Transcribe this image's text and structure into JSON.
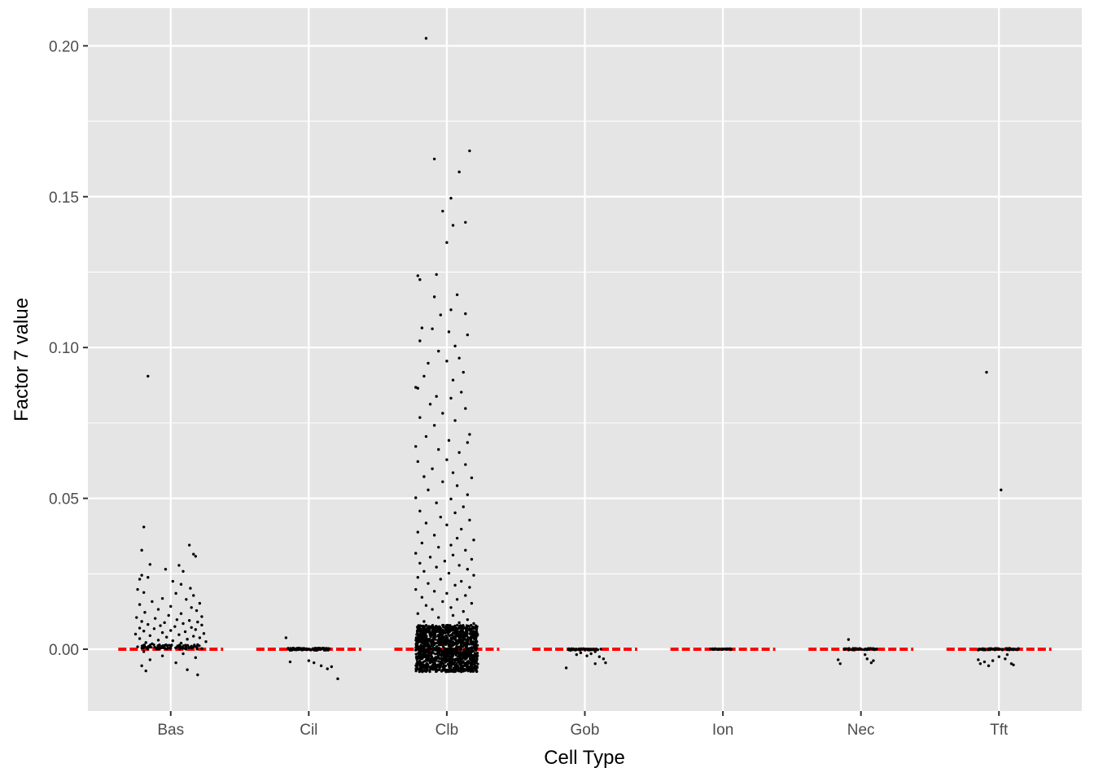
{
  "chart_data": {
    "type": "scatter",
    "title": "",
    "xlabel": "Cell Type",
    "ylabel": "Factor 7 value",
    "categories": [
      "Bas",
      "Cil",
      "Clb",
      "Gob",
      "Ion",
      "Nec",
      "Tft"
    ],
    "ylim": [
      -0.0205,
      0.2125
    ],
    "yticks": [
      0.0,
      0.05,
      0.1,
      0.15,
      0.2
    ],
    "ytick_labels": [
      "0.00",
      "0.05",
      "0.10",
      "0.15",
      "0.20"
    ],
    "grid": true,
    "legend": "none",
    "reference_line": {
      "value": 0.0,
      "color": "#ff0000",
      "style": "dashed",
      "per_category": true
    },
    "colors": {
      "panel": "#e5e5e5",
      "grid": "#ffffff",
      "point": "#000000",
      "reference": "#ff0000"
    },
    "series": [
      {
        "category": "Bas",
        "points": [
          [
            -0.22,
            0.0905
          ],
          [
            -0.26,
            0.0405
          ],
          [
            -0.28,
            0.0328
          ],
          [
            0.18,
            0.0345
          ],
          [
            0.22,
            0.0315
          ],
          [
            0.24,
            0.0308
          ],
          [
            -0.2,
            0.0281
          ],
          [
            0.08,
            0.0278
          ],
          [
            -0.05,
            0.0265
          ],
          [
            0.12,
            0.0258
          ],
          [
            -0.28,
            0.0245
          ],
          [
            -0.22,
            0.0238
          ],
          [
            -0.3,
            0.0232
          ],
          [
            0.02,
            0.0225
          ],
          [
            0.1,
            0.0215
          ],
          [
            0.19,
            0.0202
          ],
          [
            -0.32,
            0.0198
          ],
          [
            -0.26,
            0.0188
          ],
          [
            0.05,
            0.0185
          ],
          [
            0.22,
            0.0178
          ],
          [
            -0.08,
            0.0168
          ],
          [
            0.15,
            0.0165
          ],
          [
            -0.18,
            0.0158
          ],
          [
            0.28,
            0.0152
          ],
          [
            -0.3,
            0.0148
          ],
          [
            0.0,
            0.0142
          ],
          [
            0.2,
            0.0138
          ],
          [
            -0.12,
            0.0132
          ],
          [
            0.25,
            0.0128
          ],
          [
            -0.25,
            0.0122
          ],
          [
            0.1,
            0.0118
          ],
          [
            -0.02,
            0.0112
          ],
          [
            0.3,
            0.0108
          ],
          [
            -0.33,
            0.0105
          ],
          [
            -0.15,
            0.0102
          ],
          [
            0.06,
            0.0098
          ],
          [
            0.18,
            0.0095
          ],
          [
            -0.28,
            0.0092
          ],
          [
            0.26,
            0.009
          ],
          [
            -0.06,
            0.0088
          ],
          [
            0.12,
            0.0085
          ],
          [
            -0.22,
            0.0082
          ],
          [
            0.3,
            0.008
          ],
          [
            -0.1,
            0.0078
          ],
          [
            0.04,
            0.0075
          ],
          [
            0.2,
            0.0072
          ],
          [
            -0.3,
            0.007
          ],
          [
            -0.16,
            0.0068
          ],
          [
            0.24,
            0.0065
          ],
          [
            0.0,
            0.0062
          ],
          [
            -0.26,
            0.006
          ],
          [
            0.14,
            0.0058
          ],
          [
            -0.08,
            0.0055
          ],
          [
            0.32,
            0.0052
          ],
          [
            -0.34,
            0.005
          ],
          [
            0.08,
            0.0048
          ],
          [
            -0.2,
            0.0045
          ],
          [
            0.22,
            0.0043
          ],
          [
            -0.04,
            0.004
          ],
          [
            0.28,
            0.0038
          ],
          [
            -0.3,
            0.0035
          ],
          [
            0.16,
            0.0033
          ],
          [
            -0.12,
            0.003
          ],
          [
            0.02,
            0.0028
          ],
          [
            0.34,
            0.0025
          ],
          [
            -0.24,
            0.0022
          ],
          [
            0.1,
            0.002
          ],
          [
            -0.18,
            0.0018
          ],
          [
            0.26,
            0.0015
          ],
          [
            -0.06,
            0.0012
          ],
          [
            0.2,
            0.001
          ],
          [
            -0.32,
            0.0008
          ],
          [
            0.06,
            0.0006
          ],
          [
            -0.14,
            0.0004
          ],
          [
            0.3,
            0.0002
          ],
          [
            -0.26,
            -0.0008
          ],
          [
            0.12,
            -0.0015
          ],
          [
            -0.08,
            -0.0022
          ],
          [
            0.24,
            -0.0028
          ],
          [
            -0.2,
            -0.0035
          ],
          [
            0.05,
            -0.0045
          ],
          [
            -0.28,
            -0.0055
          ],
          [
            -0.24,
            -0.0072
          ],
          [
            0.16,
            -0.0068
          ],
          [
            0.26,
            -0.0085
          ]
        ]
      },
      {
        "category": "Cil",
        "points": [
          [
            -0.22,
            0.0038
          ],
          [
            -0.18,
            -0.0042
          ],
          [
            0.0,
            -0.0038
          ],
          [
            0.05,
            -0.0045
          ],
          [
            0.12,
            -0.0055
          ],
          [
            0.18,
            -0.0065
          ],
          [
            0.28,
            -0.0098
          ],
          [
            0.22,
            -0.0058
          ]
        ]
      },
      {
        "category": "Clb",
        "points": [
          [
            -0.2,
            0.2025
          ],
          [
            -0.12,
            0.1625
          ],
          [
            0.22,
            0.1652
          ],
          [
            0.12,
            0.1582
          ],
          [
            0.04,
            0.1495
          ],
          [
            -0.04,
            0.1452
          ],
          [
            0.18,
            0.1415
          ],
          [
            0.06,
            0.1405
          ],
          [
            0.0,
            0.1348
          ],
          [
            -0.28,
            0.1238
          ],
          [
            -0.26,
            0.1225
          ],
          [
            -0.1,
            0.1242
          ],
          [
            0.1,
            0.1175
          ],
          [
            -0.12,
            0.1168
          ],
          [
            0.04,
            0.1125
          ],
          [
            -0.06,
            0.1108
          ],
          [
            0.18,
            0.1112
          ],
          [
            -0.24,
            0.1065
          ],
          [
            -0.14,
            0.1062
          ],
          [
            0.02,
            0.1052
          ],
          [
            0.2,
            0.1042
          ],
          [
            -0.26,
            0.1022
          ],
          [
            0.08,
            0.1005
          ],
          [
            -0.08,
            0.0988
          ],
          [
            0.12,
            0.0965
          ],
          [
            -0.18,
            0.0948
          ],
          [
            0.0,
            0.0955
          ],
          [
            0.16,
            0.0918
          ],
          [
            -0.22,
            0.0905
          ],
          [
            0.06,
            0.0892
          ],
          [
            -0.3,
            0.0868
          ],
          [
            -0.28,
            0.0865
          ],
          [
            0.14,
            0.0852
          ],
          [
            -0.1,
            0.0838
          ],
          [
            0.04,
            0.0832
          ],
          [
            -0.16,
            0.0812
          ],
          [
            0.18,
            0.0798
          ],
          [
            -0.04,
            0.0782
          ],
          [
            -0.26,
            0.0768
          ],
          [
            0.08,
            0.0758
          ],
          [
            -0.12,
            0.0742
          ],
          [
            0.22,
            0.0712
          ],
          [
            -0.2,
            0.0705
          ],
          [
            0.02,
            0.0692
          ],
          [
            0.2,
            0.0685
          ],
          [
            -0.3,
            0.0672
          ],
          [
            -0.08,
            0.0662
          ],
          [
            0.12,
            0.0652
          ],
          [
            -0.28,
            0.0622
          ],
          [
            0.0,
            0.0628
          ],
          [
            0.18,
            0.0612
          ],
          [
            -0.14,
            0.0598
          ],
          [
            0.06,
            0.0585
          ],
          [
            -0.22,
            0.0572
          ],
          [
            0.24,
            0.0568
          ],
          [
            -0.04,
            0.0555
          ],
          [
            0.1,
            0.0542
          ],
          [
            -0.18,
            0.0528
          ],
          [
            0.2,
            0.0512
          ],
          [
            -0.3,
            0.0502
          ],
          [
            0.04,
            0.0498
          ],
          [
            -0.1,
            0.0485
          ],
          [
            0.16,
            0.0472
          ],
          [
            -0.26,
            0.0458
          ],
          [
            0.08,
            0.0452
          ],
          [
            -0.06,
            0.0438
          ],
          [
            0.22,
            0.0428
          ],
          [
            -0.2,
            0.0418
          ],
          [
            0.0,
            0.0412
          ],
          [
            0.14,
            0.0398
          ],
          [
            -0.28,
            0.0388
          ],
          [
            -0.12,
            0.0378
          ],
          [
            0.1,
            0.0368
          ],
          [
            0.26,
            0.0362
          ],
          [
            -0.24,
            0.0352
          ],
          [
            0.04,
            0.0345
          ],
          [
            -0.08,
            0.0338
          ],
          [
            0.18,
            0.0328
          ],
          [
            -0.3,
            0.0318
          ],
          [
            0.06,
            0.0312
          ],
          [
            -0.16,
            0.0305
          ],
          [
            0.24,
            0.0298
          ],
          [
            -0.02,
            0.0292
          ],
          [
            -0.26,
            0.0285
          ],
          [
            0.12,
            0.0278
          ],
          [
            -0.1,
            0.0272
          ],
          [
            0.2,
            0.0265
          ],
          [
            -0.22,
            0.0258
          ],
          [
            0.02,
            0.0252
          ],
          [
            0.26,
            0.0245
          ],
          [
            -0.28,
            0.0238
          ],
          [
            -0.06,
            0.0232
          ],
          [
            0.14,
            0.0225
          ],
          [
            -0.18,
            0.0218
          ],
          [
            0.08,
            0.0212
          ],
          [
            0.22,
            0.0205
          ],
          [
            -0.3,
            0.0198
          ],
          [
            -0.12,
            0.0192
          ],
          [
            0.0,
            0.0185
          ],
          [
            0.18,
            0.0178
          ],
          [
            -0.24,
            0.0172
          ],
          [
            0.1,
            0.0165
          ],
          [
            -0.04,
            0.0158
          ],
          [
            0.24,
            0.0152
          ],
          [
            -0.2,
            0.0145
          ],
          [
            0.04,
            0.0138
          ],
          [
            -0.14,
            0.0132
          ],
          [
            0.16,
            0.0125
          ],
          [
            -0.28,
            0.0118
          ],
          [
            0.06,
            0.0112
          ],
          [
            -0.08,
            0.0105
          ],
          [
            0.2,
            0.0098
          ],
          [
            -0.22,
            0.0092
          ],
          [
            0.12,
            0.0088
          ],
          [
            0.26,
            0.0085
          ]
        ]
      },
      {
        "category": "Gob",
        "points": [
          [
            -0.18,
            -0.0062
          ],
          [
            -0.08,
            -0.0018
          ],
          [
            -0.04,
            -0.0012
          ],
          [
            0.02,
            -0.0022
          ],
          [
            0.06,
            -0.0015
          ],
          [
            0.1,
            -0.0008
          ],
          [
            0.14,
            -0.0025
          ],
          [
            0.18,
            -0.0032
          ],
          [
            0.2,
            -0.0045
          ],
          [
            0.1,
            -0.0048
          ]
        ]
      },
      {
        "category": "Ion",
        "points": [
          [
            -0.12,
            0.0001
          ],
          [
            -0.08,
            0.0
          ],
          [
            -0.04,
            0.0
          ],
          [
            0.0,
            0.0
          ],
          [
            0.04,
            0.0
          ],
          [
            0.08,
            0.0
          ]
        ]
      },
      {
        "category": "Nec",
        "points": [
          [
            -0.22,
            -0.0035
          ],
          [
            -0.2,
            -0.0048
          ],
          [
            -0.12,
            0.0032
          ],
          [
            0.04,
            -0.0018
          ],
          [
            0.06,
            -0.0032
          ],
          [
            0.1,
            -0.0045
          ],
          [
            0.12,
            -0.0038
          ]
        ]
      },
      {
        "category": "Tft",
        "points": [
          [
            -0.12,
            0.0918
          ],
          [
            0.02,
            0.0528
          ],
          [
            -0.2,
            -0.0035
          ],
          [
            -0.18,
            -0.0048
          ],
          [
            -0.14,
            -0.0042
          ],
          [
            -0.1,
            -0.0055
          ],
          [
            -0.06,
            -0.0038
          ],
          [
            0.0,
            -0.0025
          ],
          [
            0.06,
            -0.0032
          ],
          [
            0.12,
            -0.0048
          ],
          [
            0.14,
            -0.0052
          ],
          [
            0.08,
            -0.0018
          ]
        ]
      }
    ]
  }
}
